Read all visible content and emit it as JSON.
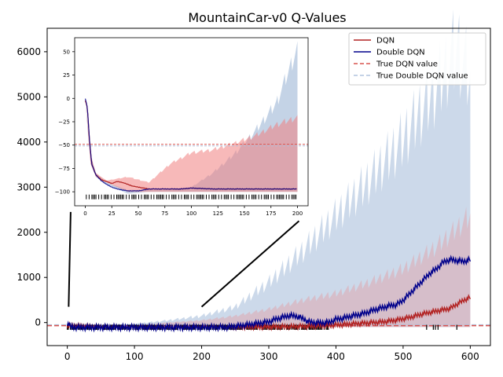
{
  "chart_data": {
    "type": "area",
    "title": "MountainCar-v0 Q-Values",
    "xlabel": "",
    "ylabel": "",
    "xlim": [
      -30,
      630
    ],
    "ylim": [
      -510,
      6520
    ],
    "xticks": [
      "0",
      "100",
      "200",
      "300",
      "400",
      "500",
      "600"
    ],
    "yticks": [
      "0",
      "1000",
      "2000",
      "3000",
      "4000",
      "5000",
      "6000"
    ],
    "legend_position": "top-right",
    "colors": {
      "dqn": "#b22222",
      "double_dqn": "#00008b",
      "true_dqn": "#d9534f",
      "true_double": "#b0c4de",
      "dqn_band": "#f08080",
      "double_band": "#b0c4de"
    },
    "series": [
      {
        "name": "DQN",
        "kind": "line",
        "x": [
          0,
          50,
          100,
          150,
          200,
          250,
          300,
          350,
          390,
          420,
          450,
          470,
          490,
          510,
          530,
          550,
          570,
          590,
          600
        ],
        "values": [
          -60,
          -95,
          -100,
          -98,
          -95,
          -95,
          -90,
          -80,
          -60,
          -30,
          0,
          20,
          60,
          120,
          200,
          260,
          320,
          500,
          560
        ]
      },
      {
        "name": "Double DQN",
        "kind": "line",
        "x": [
          0,
          2,
          5,
          10,
          20,
          40,
          60,
          100,
          150,
          200,
          240,
          260,
          280,
          300,
          310,
          320,
          330,
          340,
          350,
          360,
          370,
          380,
          390,
          400,
          410,
          420,
          440,
          460,
          480,
          490,
          500,
          510,
          520,
          530,
          540,
          550,
          560,
          570,
          580,
          590,
          600
        ],
        "values": [
          0,
          -40,
          -80,
          -95,
          -100,
          -100,
          -100,
          -100,
          -100,
          -100,
          -95,
          -60,
          -20,
          20,
          80,
          120,
          160,
          150,
          100,
          20,
          0,
          0,
          10,
          80,
          100,
          140,
          200,
          300,
          380,
          400,
          500,
          650,
          800,
          950,
          1100,
          1200,
          1350,
          1400,
          1380,
          1360,
          1400
        ]
      },
      {
        "name": "True DQN value",
        "kind": "hline",
        "value": -50
      },
      {
        "name": "True Double DQN value",
        "kind": "hline",
        "value": -50
      }
    ],
    "bands": [
      {
        "name": "DQN spread",
        "x": [
          0,
          50,
          100,
          150,
          200,
          250,
          300,
          350,
          400,
          450,
          500,
          550,
          580,
          600
        ],
        "upper": [
          -50,
          -80,
          -60,
          0,
          50,
          150,
          300,
          500,
          650,
          900,
          1200,
          1700,
          2100,
          2400
        ],
        "lower": [
          -100,
          -100,
          -100,
          -100,
          -100,
          -100,
          -100,
          -100,
          -100,
          -100,
          -100,
          -100,
          -100,
          -100
        ]
      },
      {
        "name": "Double DQN spread",
        "x": [
          0,
          50,
          100,
          150,
          200,
          250,
          300,
          350,
          400,
          450,
          500,
          550,
          580,
          600
        ],
        "upper": [
          0,
          -60,
          -30,
          50,
          150,
          350,
          900,
          1600,
          2400,
          3200,
          4100,
          5300,
          6200,
          5500
        ],
        "lower": [
          -100,
          -100,
          -100,
          -100,
          -100,
          -100,
          -100,
          -100,
          -100,
          -100,
          -100,
          -100,
          -100,
          -100
        ]
      }
    ],
    "inset": {
      "xlim": [
        -10,
        210
      ],
      "ylim": [
        -115,
        65
      ],
      "xticks": [
        "0",
        "25",
        "50",
        "75",
        "100",
        "125",
        "150",
        "175",
        "200"
      ],
      "yticks": [
        "−100",
        "−75",
        "−50",
        "−25",
        "0",
        "25",
        "50"
      ],
      "series": [
        {
          "name": "DQN",
          "x": [
            0,
            2,
            4,
            6,
            10,
            15,
            20,
            25,
            30,
            35,
            40,
            45,
            50,
            55,
            60,
            70,
            80,
            90,
            100,
            120,
            140,
            160,
            180,
            200
          ],
          "values": [
            -2,
            -10,
            -45,
            -70,
            -82,
            -87,
            -89,
            -91,
            -89,
            -90,
            -92,
            -94,
            -95,
            -96,
            -97,
            -97,
            -97,
            -97,
            -96,
            -97,
            -97,
            -97,
            -97,
            -97
          ]
        },
        {
          "name": "Double DQN",
          "x": [
            0,
            2,
            4,
            6,
            10,
            15,
            20,
            25,
            30,
            35,
            40,
            45,
            50,
            55,
            60,
            70,
            80,
            90,
            100,
            120,
            140,
            160,
            180,
            200
          ],
          "values": [
            0,
            -10,
            -45,
            -70,
            -82,
            -88,
            -92,
            -95,
            -97,
            -98,
            -99,
            -99,
            -99,
            -98,
            -97,
            -97,
            -97,
            -97,
            -96,
            -97,
            -97,
            -97,
            -97,
            -97
          ]
        }
      ],
      "true_value": -50,
      "bands": [
        {
          "name": "DQN spread",
          "x": [
            0,
            5,
            10,
            20,
            40,
            60,
            80,
            100,
            120,
            140,
            160,
            180,
            200
          ],
          "upper": [
            -2,
            -60,
            -80,
            -88,
            -84,
            -90,
            -70,
            -58,
            -55,
            -48,
            -40,
            -28,
            -20
          ],
          "lower": [
            -2,
            -70,
            -84,
            -90,
            -100,
            -100,
            -100,
            -100,
            -100,
            -100,
            -100,
            -100,
            -100
          ]
        },
        {
          "name": "Double DQN spread",
          "x": [
            0,
            5,
            10,
            20,
            40,
            60,
            80,
            100,
            120,
            140,
            160,
            180,
            200
          ],
          "upper": [
            0,
            -60,
            -80,
            -90,
            -98,
            -98,
            -98,
            -95,
            -80,
            -60,
            -35,
            -5,
            55
          ],
          "lower": [
            0,
            -70,
            -84,
            -92,
            -102,
            -100,
            -100,
            -100,
            -100,
            -100,
            -100,
            -100,
            -100
          ]
        }
      ]
    }
  }
}
